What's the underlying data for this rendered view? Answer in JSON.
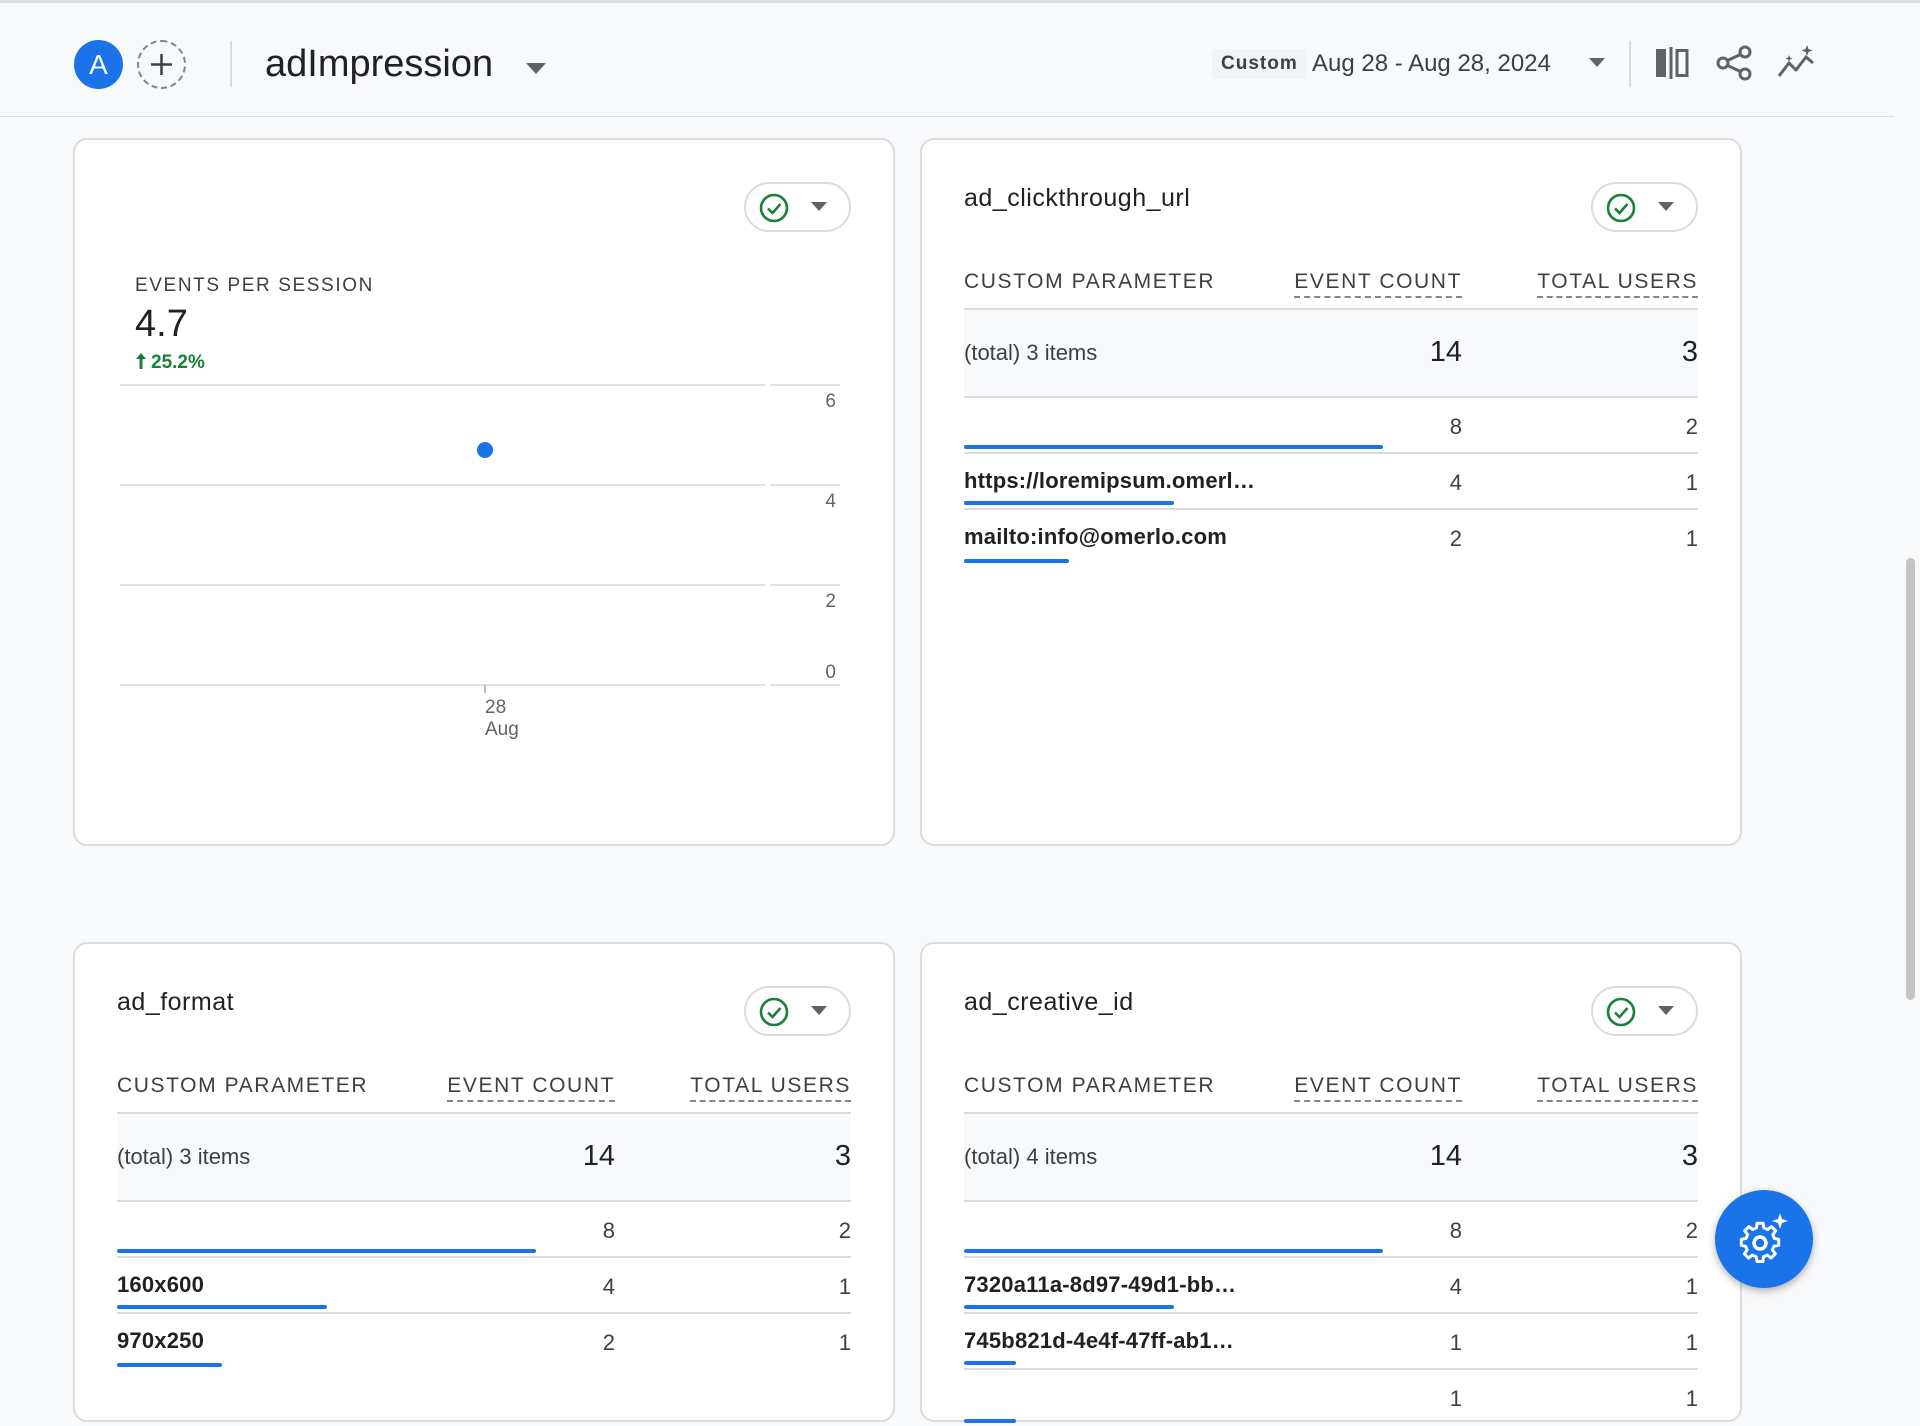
{
  "header": {
    "avatar_letter": "A",
    "title": "adImpression",
    "custom_label": "Custom",
    "date_range": "Aug 28 - Aug 28, 2024"
  },
  "metric_card": {
    "metric_label": "EVENTS PER SESSION",
    "metric_value": "4.7",
    "metric_change": "25.2%",
    "chart_data": {
      "type": "scatter",
      "title": "",
      "xlabel": "",
      "ylabel": "",
      "x": [
        "28 Aug"
      ],
      "series": [
        {
          "values": [
            4.7
          ]
        }
      ],
      "ylim": [
        0,
        6
      ],
      "yticks": [
        "6",
        "4",
        "2",
        "0"
      ],
      "xtick_day": "28",
      "xtick_month": "Aug",
      "point_color": "#1a73e8",
      "grid": true
    }
  },
  "columns": {
    "param": "CUSTOM PARAMETER",
    "event_count": "EVENT COUNT",
    "total_users": "TOTAL USERS"
  },
  "tables": [
    {
      "title": "ad_clickthrough_url",
      "total_label": "(total) 3 items",
      "total_events": "14",
      "total_users": "3",
      "rows": [
        {
          "label": "",
          "events": "8",
          "users": "2",
          "share": 0.571
        },
        {
          "label": "https://loremipsum.omerl…",
          "events": "4",
          "users": "1",
          "share": 0.286
        },
        {
          "label": "mailto:info@omerlo.com",
          "events": "2",
          "users": "1",
          "share": 0.143
        }
      ]
    },
    {
      "title": "ad_format",
      "total_label": "(total) 3 items",
      "total_events": "14",
      "total_users": "3",
      "rows": [
        {
          "label": "",
          "events": "8",
          "users": "2",
          "share": 0.571
        },
        {
          "label": "160x600",
          "events": "4",
          "users": "1",
          "share": 0.286
        },
        {
          "label": "970x250",
          "events": "2",
          "users": "1",
          "share": 0.143
        }
      ]
    },
    {
      "title": "ad_creative_id",
      "total_label": "(total) 4 items",
      "total_events": "14",
      "total_users": "3",
      "rows": [
        {
          "label": "",
          "events": "8",
          "users": "2",
          "share": 0.571
        },
        {
          "label": "7320a11a-8d97-49d1-bb…",
          "events": "4",
          "users": "1",
          "share": 0.286
        },
        {
          "label": "745b821d-4e4f-47ff-ab1…",
          "events": "1",
          "users": "1",
          "share": 0.071
        },
        {
          "label": "",
          "events": "1",
          "users": "1",
          "share": 0.071
        }
      ]
    }
  ],
  "colors": {
    "accent": "#1a73e8",
    "positive": "#188038",
    "border": "#dadce0"
  }
}
